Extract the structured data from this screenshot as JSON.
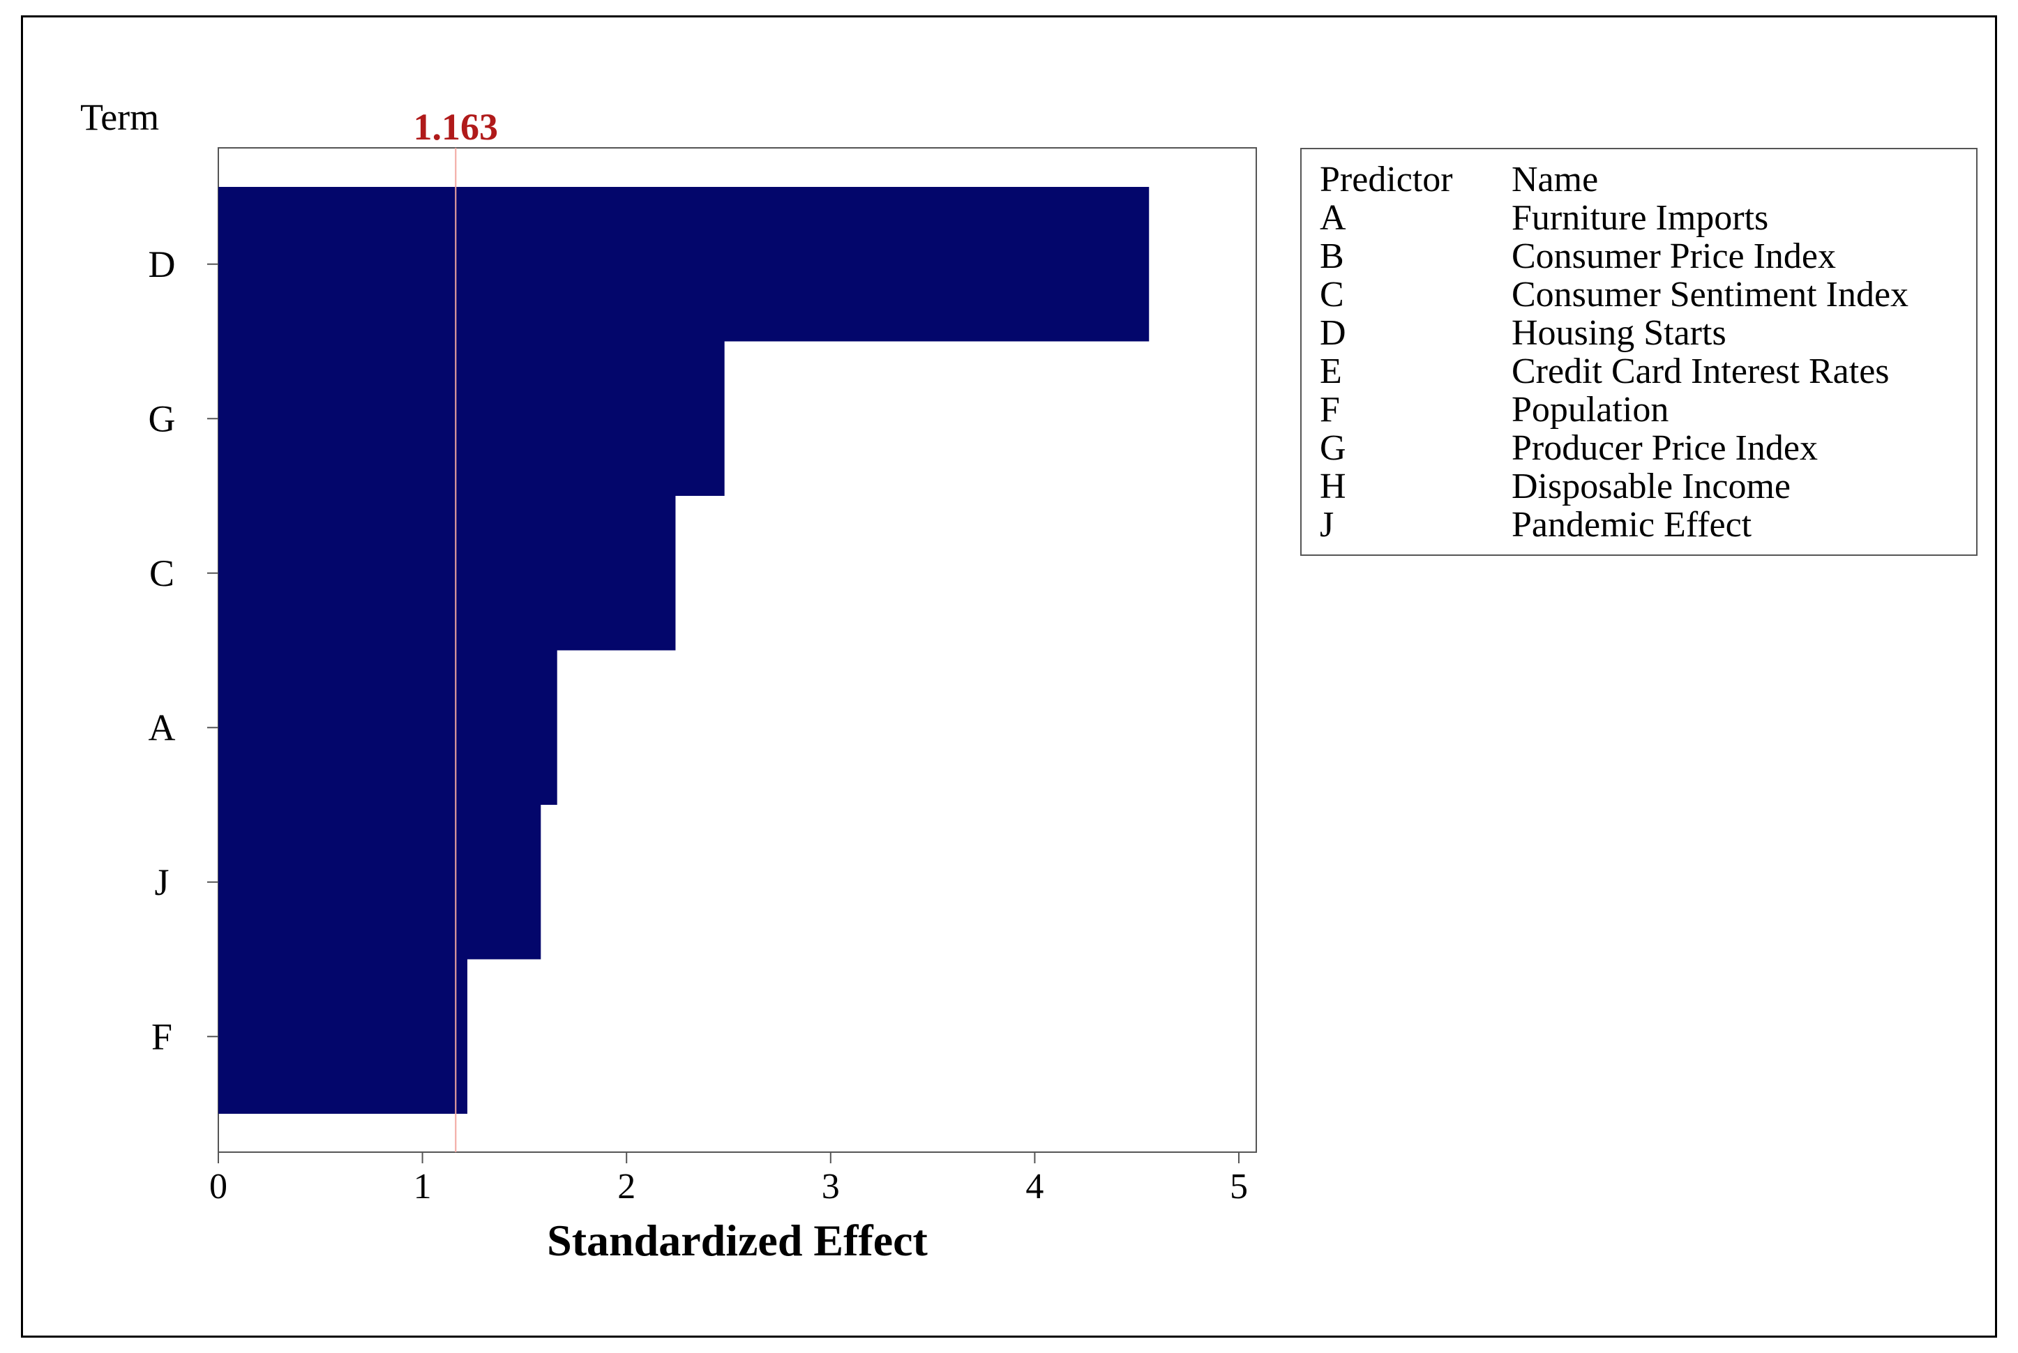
{
  "chart_data": {
    "type": "bar",
    "orientation": "horizontal",
    "categories": [
      "D",
      "G",
      "C",
      "A",
      "J",
      "F"
    ],
    "values": [
      4.56,
      2.48,
      2.24,
      1.66,
      1.58,
      1.22
    ],
    "reference_line": {
      "value": 1.163,
      "label": "1.163",
      "color": "#b01a1a"
    },
    "y_header": "Term",
    "xlabel": "Standardized Effect",
    "xlim": [
      0,
      5
    ],
    "xticks": [
      "0",
      "1",
      "2",
      "3",
      "4",
      "5"
    ],
    "bar_color": "#03066b",
    "grid": false,
    "legend_placement": "right"
  },
  "legend": {
    "header_code": "Predictor",
    "header_name": "Name",
    "rows": [
      {
        "code": "A",
        "name": "Furniture Imports"
      },
      {
        "code": "B",
        "name": "Consumer Price Index"
      },
      {
        "code": "C",
        "name": "Consumer Sentiment Index"
      },
      {
        "code": "D",
        "name": "Housing Starts"
      },
      {
        "code": "E",
        "name": "Credit Card Interest Rates"
      },
      {
        "code": "F",
        "name": "Population"
      },
      {
        "code": "G",
        "name": "Producer Price Index"
      },
      {
        "code": "H",
        "name": "Disposable Income"
      },
      {
        "code": "J",
        "name": "Pandemic Effect"
      }
    ]
  }
}
